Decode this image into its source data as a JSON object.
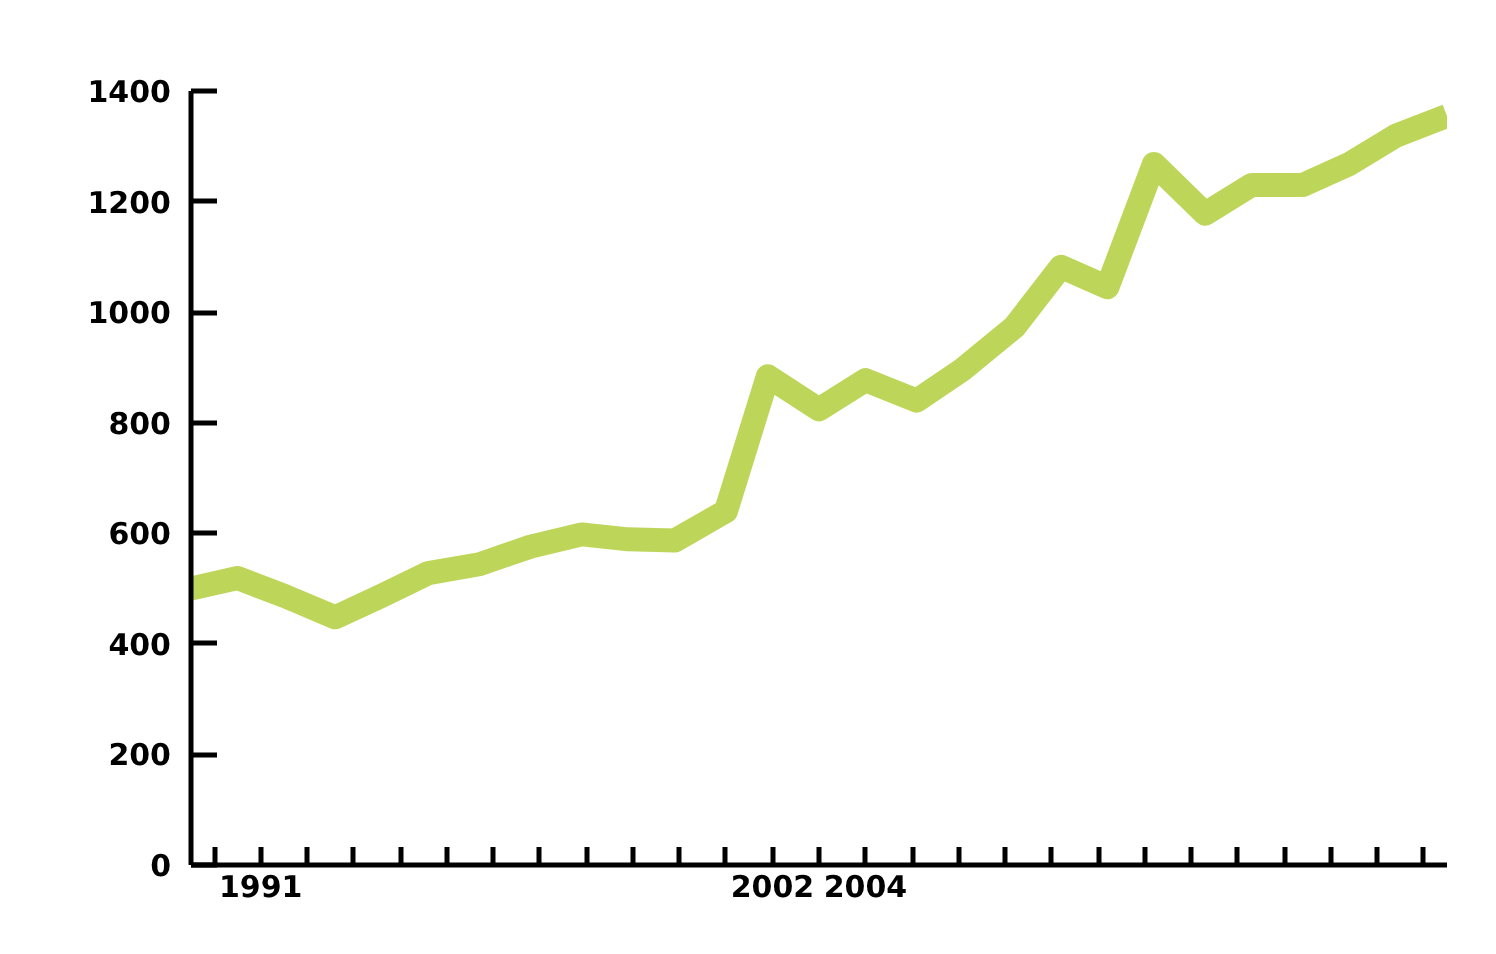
{
  "chart_data": {
    "type": "line",
    "x": [
      1989.5,
      1990.5,
      1991.5,
      1992.6,
      1993.6,
      1994.6,
      1995.7,
      1996.8,
      1997.9,
      1998.9,
      1999.9,
      2001,
      2001.9,
      2003,
      2004,
      2005.1,
      2006.1,
      2007.2,
      2008.2,
      2009.2,
      2010.2,
      2011.3,
      2012.3,
      2013.4,
      2014.4,
      2015.4,
      2016.5
    ],
    "series": [
      {
        "color": "#bdd65a",
        "values": [
          500,
          519,
          487,
          448,
          487,
          528,
          544,
          576,
          598,
          589,
          587,
          640,
          884,
          824,
          877,
          840,
          897,
          973,
          1082,
          1045,
          1268,
          1178,
          1230,
          1230,
          1268,
          1319,
          1355
        ]
      }
    ],
    "xlim": [
      1989.5,
      2016.5
    ],
    "xticks": [
      {
        "value": 1990,
        "label": null
      },
      1991,
      {
        "value": 1992,
        "label": null
      },
      {
        "value": 1993,
        "label": null
      },
      {
        "value": 1994,
        "label": null
      },
      {
        "value": 1995,
        "label": null
      },
      {
        "value": 1996,
        "label": null
      },
      {
        "value": 1997,
        "label": null
      },
      {
        "value": 1998,
        "label": null
      },
      {
        "value": 1999,
        "label": null
      },
      {
        "value": 2000,
        "label": null
      },
      {
        "value": 2001,
        "label": null
      },
      2002,
      {
        "value": 2003,
        "label": null
      },
      2004,
      {
        "value": 2005,
        "label": null
      },
      {
        "value": 2006,
        "label": null
      },
      {
        "value": 2007,
        "label": null
      },
      {
        "value": 2008,
        "label": null
      },
      {
        "value": 2009,
        "label": null
      },
      {
        "value": 2010,
        "label": null
      },
      {
        "value": 2011,
        "label": null
      },
      {
        "value": 2012,
        "label": null
      },
      {
        "value": 2013,
        "label": null
      },
      {
        "value": 2014,
        "label": null
      },
      {
        "value": 2015,
        "label": null
      },
      {
        "value": 2016,
        "label": null
      }
    ],
    "ylim": [
      0,
      1400
    ],
    "yticks": [
      0,
      200,
      400,
      600,
      800,
      1000,
      1200,
      1400
    ],
    "grid": false,
    "marker": "none",
    "line_style": "solid"
  }
}
